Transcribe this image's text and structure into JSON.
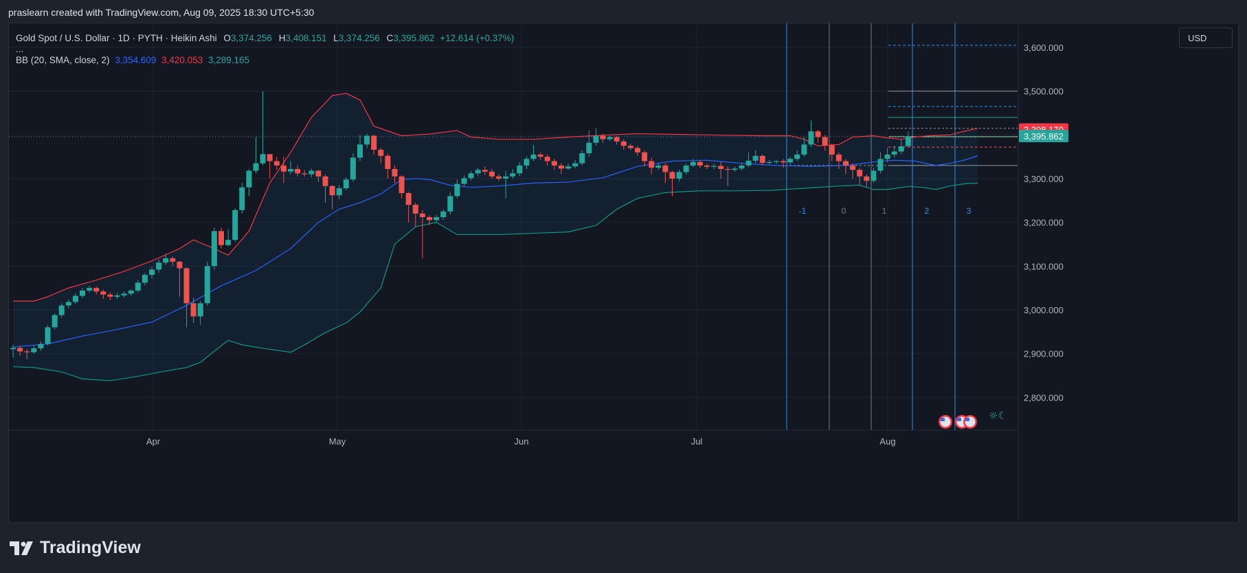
{
  "header": {
    "attribution": "praslearn created with TradingView.com, Aug 09, 2025 18:30 UTC+5:30"
  },
  "legend": {
    "symbol": "Gold Spot / U.S. Dollar · 1D · PYTH · Heikin Ashi",
    "o_label": "O",
    "o_value": "3,374.256",
    "h_label": "H",
    "h_value": "3,408.151",
    "l_label": "L",
    "l_value": "3,374.256",
    "c_label": "C",
    "c_value": "3,395.862",
    "change": "+12.614 (+0.37%)",
    "ellipsis": "...",
    "bb_label": "BB (20, SMA, close, 2)",
    "bb_basis": "3,354.609",
    "bb_upper": "3,420.053",
    "bb_lower": "3,289.165"
  },
  "currency": "USD",
  "brand": {
    "name": "TradingView"
  },
  "colors": {
    "up": "#26a69a",
    "down": "#ef5350",
    "bb_upper": "#f23645",
    "bb_basis": "#2962ff",
    "bb_lower": "#089981",
    "bg": "#131722",
    "grid": "#1f2330",
    "cycle_line": "#2196f3",
    "text": "#b2b5be",
    "price_label_red": "#f23645",
    "price_label_teal": "#26a69a"
  },
  "chart_data": {
    "type": "candlestick",
    "style": "Heikin Ashi",
    "title": "Gold Spot / U.S. Dollar · 1D · PYTH · Heikin Ashi",
    "x_ticks": [
      "Apr",
      "May",
      "Jun",
      "Jul",
      "Aug"
    ],
    "y_ticks": [
      "2,800.000",
      "2,900.000",
      "3,000.000",
      "3,100.000",
      "3,200.000",
      "3,300.000",
      "3,400.000",
      "3,500.000",
      "3,600.000"
    ],
    "ylim": [
      2725,
      3655
    ],
    "price_labels": [
      {
        "text": "3,398.170",
        "value": 3398.17,
        "color": "#f23645"
      },
      {
        "text": "3,395.862",
        "value": 3395.862,
        "color": "#26a69a"
      }
    ],
    "cycle_labels": [
      "-1",
      "0",
      "1",
      "2",
      "3"
    ],
    "candles": [
      [
        2910,
        2913,
        2890,
        2920
      ],
      [
        2913,
        2905,
        2895,
        2918
      ],
      [
        2905,
        2903,
        2887,
        2910
      ],
      [
        2903,
        2912,
        2900,
        2918
      ],
      [
        2912,
        2922,
        2906,
        2928
      ],
      [
        2922,
        2960,
        2918,
        2965
      ],
      [
        2960,
        2988,
        2955,
        2992
      ],
      [
        2988,
        3010,
        2982,
        3015
      ],
      [
        3010,
        3018,
        3003,
        3024
      ],
      [
        3018,
        3032,
        3014,
        3038
      ],
      [
        3032,
        3044,
        3027,
        3050
      ],
      [
        3044,
        3050,
        3040,
        3055
      ],
      [
        3050,
        3042,
        3035,
        3053
      ],
      [
        3042,
        3035,
        3025,
        3046
      ],
      [
        3035,
        3030,
        3022,
        3040
      ],
      [
        3030,
        3033,
        3025,
        3038
      ],
      [
        3033,
        3037,
        3028,
        3042
      ],
      [
        3037,
        3044,
        3032,
        3047
      ],
      [
        3044,
        3062,
        3040,
        3068
      ],
      [
        3062,
        3080,
        3056,
        3084
      ],
      [
        3080,
        3092,
        3072,
        3098
      ],
      [
        3092,
        3108,
        3085,
        3115
      ],
      [
        3108,
        3118,
        3103,
        3128
      ],
      [
        3118,
        3110,
        3100,
        3122
      ],
      [
        3110,
        3095,
        3030,
        3112
      ],
      [
        3095,
        3015,
        2960,
        3098
      ],
      [
        3015,
        2985,
        2970,
        3028
      ],
      [
        2985,
        3015,
        2966,
        3020
      ],
      [
        3015,
        3100,
        3010,
        3110
      ],
      [
        3100,
        3180,
        3092,
        3188
      ],
      [
        3180,
        3148,
        3140,
        3188
      ],
      [
        3148,
        3160,
        3145,
        3184
      ],
      [
        3160,
        3228,
        3155,
        3232
      ],
      [
        3228,
        3280,
        3220,
        3290
      ],
      [
        3280,
        3318,
        3260,
        3322
      ],
      [
        3318,
        3335,
        3312,
        3395
      ],
      [
        3335,
        3356,
        3330,
        3500
      ],
      [
        3356,
        3340,
        3300,
        3355
      ],
      [
        3340,
        3330,
        3320,
        3350
      ],
      [
        3330,
        3316,
        3290,
        3350
      ],
      [
        3316,
        3322,
        3310,
        3340
      ],
      [
        3322,
        3312,
        3305,
        3330
      ],
      [
        3312,
        3310,
        3305,
        3320
      ],
      [
        3310,
        3318,
        3303,
        3323
      ],
      [
        3318,
        3305,
        3292,
        3320
      ],
      [
        3305,
        3283,
        3245,
        3310
      ],
      [
        3283,
        3262,
        3230,
        3285
      ],
      [
        3262,
        3278,
        3253,
        3285
      ],
      [
        3278,
        3298,
        3273,
        3303
      ],
      [
        3298,
        3348,
        3293,
        3358
      ],
      [
        3348,
        3378,
        3340,
        3400
      ],
      [
        3378,
        3398,
        3370,
        3403
      ],
      [
        3398,
        3366,
        3355,
        3400
      ],
      [
        3366,
        3352,
        3335,
        3370
      ],
      [
        3352,
        3322,
        3300,
        3357
      ],
      [
        3322,
        3305,
        3290,
        3330
      ],
      [
        3305,
        3267,
        3255,
        3308
      ],
      [
        3267,
        3240,
        3200,
        3270
      ],
      [
        3240,
        3220,
        3190,
        3245
      ],
      [
        3220,
        3212,
        3118,
        3228
      ],
      [
        3212,
        3205,
        3193,
        3216
      ],
      [
        3205,
        3212,
        3200,
        3217
      ],
      [
        3212,
        3225,
        3206,
        3230
      ],
      [
        3225,
        3260,
        3218,
        3268
      ],
      [
        3260,
        3288,
        3255,
        3298
      ],
      [
        3288,
        3301,
        3283,
        3307
      ],
      [
        3301,
        3312,
        3296,
        3317
      ],
      [
        3312,
        3320,
        3305,
        3325
      ],
      [
        3320,
        3316,
        3308,
        3328
      ],
      [
        3316,
        3305,
        3300,
        3322
      ],
      [
        3305,
        3300,
        3295,
        3310
      ],
      [
        3300,
        3305,
        3255,
        3318
      ],
      [
        3305,
        3312,
        3300,
        3322
      ],
      [
        3312,
        3330,
        3306,
        3337
      ],
      [
        3330,
        3345,
        3322,
        3351
      ],
      [
        3345,
        3355,
        3340,
        3377
      ],
      [
        3355,
        3350,
        3343,
        3360
      ],
      [
        3350,
        3340,
        3330,
        3355
      ],
      [
        3340,
        3330,
        3320,
        3345
      ],
      [
        3330,
        3323,
        3310,
        3335
      ],
      [
        3323,
        3328,
        3320,
        3335
      ],
      [
        3328,
        3335,
        3323,
        3343
      ],
      [
        3335,
        3358,
        3330,
        3365
      ],
      [
        3358,
        3382,
        3350,
        3410
      ],
      [
        3382,
        3398,
        3375,
        3415
      ],
      [
        3398,
        3390,
        3382,
        3403
      ],
      [
        3390,
        3395,
        3386,
        3398
      ],
      [
        3395,
        3385,
        3378,
        3398
      ],
      [
        3385,
        3375,
        3366,
        3390
      ],
      [
        3375,
        3370,
        3365,
        3380
      ],
      [
        3370,
        3360,
        3352,
        3375
      ],
      [
        3360,
        3340,
        3328,
        3364
      ],
      [
        3340,
        3325,
        3310,
        3348
      ],
      [
        3325,
        3330,
        3320,
        3335
      ],
      [
        3330,
        3315,
        3290,
        3335
      ],
      [
        3315,
        3300,
        3260,
        3318
      ],
      [
        3300,
        3315,
        3293,
        3320
      ],
      [
        3315,
        3330,
        3309,
        3334
      ],
      [
        3330,
        3338,
        3326,
        3345
      ],
      [
        3338,
        3330,
        3324,
        3343
      ],
      [
        3330,
        3327,
        3322,
        3334
      ],
      [
        3327,
        3329,
        3322,
        3334
      ],
      [
        3329,
        3322,
        3300,
        3338
      ],
      [
        3322,
        3320,
        3283,
        3328
      ],
      [
        3320,
        3323,
        3316,
        3327
      ],
      [
        3323,
        3330,
        3318,
        3336
      ],
      [
        3330,
        3341,
        3326,
        3360
      ],
      [
        3341,
        3352,
        3335,
        3365
      ],
      [
        3352,
        3336,
        3330,
        3355
      ],
      [
        3336,
        3338,
        3333,
        3343
      ],
      [
        3338,
        3340,
        3334,
        3343
      ],
      [
        3340,
        3337,
        3325,
        3345
      ],
      [
        3337,
        3345,
        3332,
        3350
      ],
      [
        3345,
        3355,
        3340,
        3365
      ],
      [
        3355,
        3378,
        3350,
        3395
      ],
      [
        3378,
        3408,
        3372,
        3433
      ],
      [
        3408,
        3395,
        3382,
        3412
      ],
      [
        3395,
        3376,
        3364,
        3400
      ],
      [
        3376,
        3355,
        3340,
        3380
      ],
      [
        3355,
        3340,
        3322,
        3360
      ],
      [
        3340,
        3330,
        3310,
        3345
      ],
      [
        3330,
        3320,
        3300,
        3335
      ],
      [
        3320,
        3305,
        3285,
        3325
      ],
      [
        3305,
        3295,
        3280,
        3310
      ],
      [
        3295,
        3318,
        3290,
        3325
      ],
      [
        3318,
        3345,
        3312,
        3360
      ],
      [
        3345,
        3355,
        3338,
        3370
      ],
      [
        3355,
        3362,
        3348,
        3375
      ],
      [
        3362,
        3374,
        3356,
        3390
      ],
      [
        3374,
        3395.862,
        3374,
        3408.151
      ]
    ],
    "bb_upper": [
      [
        0,
        3020
      ],
      [
        3,
        3020
      ],
      [
        5,
        3030
      ],
      [
        8,
        3050
      ],
      [
        12,
        3068
      ],
      [
        16,
        3088
      ],
      [
        20,
        3112
      ],
      [
        24,
        3140
      ],
      [
        26,
        3160
      ],
      [
        29,
        3140
      ],
      [
        31,
        3125
      ],
      [
        34,
        3180
      ],
      [
        37,
        3290
      ],
      [
        40,
        3360
      ],
      [
        43,
        3440
      ],
      [
        46,
        3490
      ],
      [
        48,
        3495
      ],
      [
        50,
        3480
      ],
      [
        52,
        3420
      ],
      [
        56,
        3398
      ],
      [
        60,
        3402
      ],
      [
        64,
        3410
      ],
      [
        66,
        3395
      ],
      [
        70,
        3390
      ],
      [
        75,
        3390
      ],
      [
        80,
        3395
      ],
      [
        86,
        3400
      ],
      [
        90,
        3403
      ],
      [
        100,
        3400
      ],
      [
        108,
        3398
      ],
      [
        112,
        3398
      ],
      [
        114,
        3390
      ],
      [
        116,
        3375
      ],
      [
        119,
        3378
      ],
      [
        121,
        3395
      ],
      [
        124,
        3398
      ],
      [
        126,
        3393
      ],
      [
        128,
        3390
      ],
      [
        130,
        3395
      ],
      [
        132,
        3398
      ],
      [
        135,
        3400
      ],
      [
        137,
        3408
      ],
      [
        139,
        3415
      ]
    ],
    "bb_basis": [
      [
        0,
        2915
      ],
      [
        5,
        2922
      ],
      [
        10,
        2940
      ],
      [
        15,
        2955
      ],
      [
        20,
        2972
      ],
      [
        25,
        3010
      ],
      [
        30,
        3055
      ],
      [
        35,
        3090
      ],
      [
        40,
        3140
      ],
      [
        44,
        3200
      ],
      [
        47,
        3230
      ],
      [
        50,
        3245
      ],
      [
        53,
        3265
      ],
      [
        56,
        3298
      ],
      [
        58,
        3300
      ],
      [
        60,
        3298
      ],
      [
        63,
        3285
      ],
      [
        66,
        3280
      ],
      [
        70,
        3283
      ],
      [
        75,
        3290
      ],
      [
        80,
        3292
      ],
      [
        85,
        3302
      ],
      [
        90,
        3328
      ],
      [
        95,
        3340
      ],
      [
        100,
        3342
      ],
      [
        105,
        3335
      ],
      [
        110,
        3330
      ],
      [
        115,
        3328
      ],
      [
        120,
        3330
      ],
      [
        124,
        3338
      ],
      [
        127,
        3342
      ],
      [
        130,
        3340
      ],
      [
        133,
        3330
      ],
      [
        135,
        3335
      ],
      [
        137,
        3342
      ],
      [
        139,
        3352
      ]
    ],
    "bb_lower": [
      [
        0,
        2870
      ],
      [
        3,
        2868
      ],
      [
        7,
        2858
      ],
      [
        10,
        2842
      ],
      [
        14,
        2838
      ],
      [
        18,
        2848
      ],
      [
        22,
        2860
      ],
      [
        25,
        2868
      ],
      [
        27,
        2880
      ],
      [
        30,
        2918
      ],
      [
        31,
        2930
      ],
      [
        33,
        2920
      ],
      [
        36,
        2912
      ],
      [
        40,
        2903
      ],
      [
        42,
        2920
      ],
      [
        45,
        2948
      ],
      [
        48,
        2970
      ],
      [
        50,
        2995
      ],
      [
        53,
        3050
      ],
      [
        55,
        3150
      ],
      [
        58,
        3190
      ],
      [
        61,
        3200
      ],
      [
        64,
        3172
      ],
      [
        70,
        3172
      ],
      [
        75,
        3175
      ],
      [
        80,
        3178
      ],
      [
        84,
        3193
      ],
      [
        87,
        3230
      ],
      [
        90,
        3255
      ],
      [
        94,
        3268
      ],
      [
        99,
        3272
      ],
      [
        104,
        3272
      ],
      [
        109,
        3273
      ],
      [
        114,
        3278
      ],
      [
        119,
        3283
      ],
      [
        122,
        3285
      ],
      [
        124,
        3275
      ],
      [
        126,
        3275
      ],
      [
        129,
        3282
      ],
      [
        131,
        3280
      ],
      [
        133,
        3275
      ],
      [
        135,
        3283
      ],
      [
        137,
        3288
      ],
      [
        139,
        3290
      ]
    ]
  }
}
